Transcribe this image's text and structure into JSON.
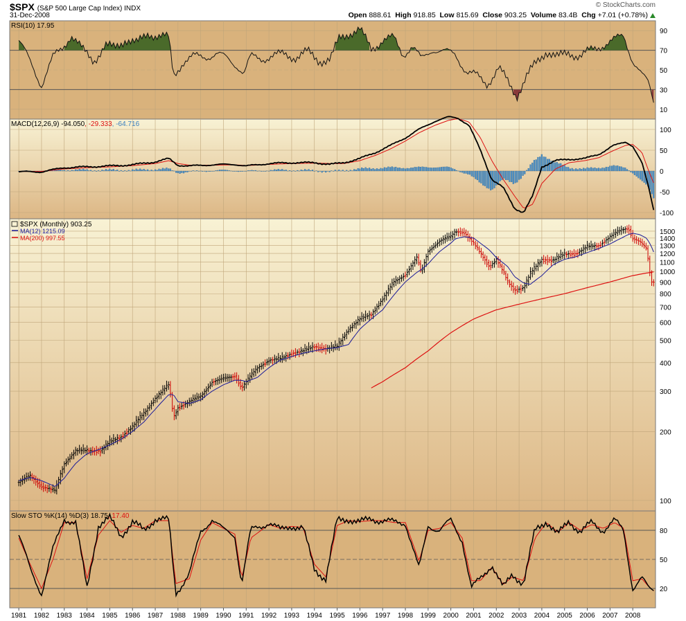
{
  "header": {
    "symbol": "$SPX",
    "description": "(S&P 500 Large Cap Index) INDX",
    "date": "31-Dec-2008",
    "open_label": "Open",
    "open": "888.61",
    "high_label": "High",
    "high": "918.85",
    "low_label": "Low",
    "low": "815.69",
    "close_label": "Close",
    "close": "903.25",
    "volume_label": "Volume",
    "volume": "83.4B",
    "chg_label": "Chg",
    "chg": "+7.01 (+0.78%)",
    "brand": "© StockCharts.com"
  },
  "colors": {
    "panel_bg": "#d9b27c",
    "main_bg_top": "#f7f0cf",
    "main_bg_bottom": "#dcb583",
    "price_up": "#000000",
    "price_down": "#cc0000",
    "ma12": "#1a1a99",
    "ma200": "#dd1111",
    "histogram": "#4a90c8",
    "rsi_fill_high": "#4a6a2a",
    "rsi_fill_low": "#8a3a3a"
  },
  "chart_data": [
    {
      "type": "line",
      "panel": "rsi",
      "label_text": "RSI(10) 17.95",
      "ylim": [
        0,
        100
      ],
      "yticks": [
        10,
        30,
        50,
        70,
        90
      ],
      "x": [
        1981.0,
        1981.5,
        1982.0,
        1982.5,
        1982.9,
        1983.3,
        1983.8,
        1984.3,
        1984.8,
        1985.2,
        1985.7,
        1986.2,
        1986.7,
        1987.2,
        1987.6,
        1987.8,
        1988.2,
        1988.7,
        1989.2,
        1989.7,
        1990.2,
        1990.6,
        1990.9,
        1991.2,
        1991.7,
        1992.2,
        1992.7,
        1993.2,
        1993.7,
        1994.2,
        1994.7,
        1995.1,
        1995.5,
        1996.0,
        1996.5,
        1997.0,
        1997.5,
        1997.9,
        1998.3,
        1998.7,
        1999.2,
        1999.7,
        2000.2,
        2000.7,
        2001.1,
        2001.6,
        2002.1,
        2002.6,
        2002.9,
        2003.3,
        2003.7,
        2004.2,
        2004.7,
        2005.2,
        2005.7,
        2006.2,
        2006.7,
        2007.2,
        2007.6,
        2008.0,
        2008.4,
        2008.7,
        2008.92
      ],
      "values": [
        80,
        58,
        35,
        62,
        72,
        86,
        70,
        60,
        74,
        72,
        82,
        76,
        88,
        84,
        82,
        44,
        58,
        63,
        64,
        66,
        61,
        55,
        46,
        63,
        62,
        64,
        66,
        63,
        68,
        60,
        60,
        82,
        88,
        90,
        72,
        80,
        82,
        66,
        74,
        60,
        72,
        68,
        66,
        48,
        44,
        36,
        52,
        34,
        24,
        42,
        55,
        70,
        62,
        68,
        64,
        70,
        76,
        80,
        85,
        60,
        44,
        36,
        18
      ]
    },
    {
      "type": "line",
      "panel": "macd",
      "label_macd": "MACD(12,26,9) -94.050",
      "label_signal": ", -29.333",
      "label_hist": ", -64.716",
      "ylim": [
        -115,
        125
      ],
      "yticks": [
        -100,
        -50,
        0,
        50,
        100
      ],
      "x": [
        1981.0,
        1982.0,
        1983.0,
        1984.0,
        1985.0,
        1986.0,
        1987.0,
        1987.6,
        1988.0,
        1988.5,
        1989.5,
        1990.5,
        1991.0,
        1992.0,
        1993.0,
        1994.0,
        1994.7,
        1995.3,
        1996.0,
        1996.7,
        1997.3,
        1998.0,
        1998.6,
        1999.3,
        1999.9,
        2000.3,
        2000.8,
        2001.3,
        2001.8,
        2002.3,
        2002.8,
        2003.2,
        2003.6,
        2004.0,
        2004.6,
        2005.2,
        2005.9,
        2006.5,
        2007.1,
        2007.7,
        2008.0,
        2008.4,
        2008.7,
        2008.92
      ],
      "series": [
        {
          "name": "MACD",
          "values": [
            -2,
            -2,
            8,
            10,
            12,
            15,
            22,
            30,
            14,
            12,
            15,
            16,
            12,
            18,
            20,
            20,
            16,
            20,
            30,
            45,
            60,
            80,
            100,
            120,
            130,
            128,
            110,
            50,
            -20,
            -40,
            -90,
            -100,
            -60,
            10,
            25,
            28,
            30,
            40,
            60,
            70,
            60,
            20,
            -40,
            -94
          ]
        },
        {
          "name": "Signal",
          "values": [
            -1,
            -1,
            5,
            8,
            10,
            13,
            18,
            25,
            18,
            14,
            14,
            15,
            13,
            16,
            18,
            19,
            18,
            18,
            25,
            38,
            52,
            72,
            92,
            110,
            122,
            126,
            118,
            80,
            25,
            -20,
            -60,
            -90,
            -80,
            -30,
            5,
            20,
            25,
            32,
            48,
            62,
            64,
            45,
            0,
            -29
          ]
        },
        {
          "name": "Histogram",
          "values": [
            -1,
            -1,
            3,
            2,
            2,
            2,
            4,
            5,
            -4,
            -2,
            1,
            1,
            -1,
            2,
            2,
            1,
            -2,
            2,
            5,
            7,
            8,
            8,
            8,
            10,
            8,
            2,
            -8,
            -30,
            -45,
            -20,
            -30,
            -10,
            20,
            40,
            20,
            8,
            5,
            8,
            12,
            8,
            -4,
            -25,
            -40,
            -65
          ]
        }
      ]
    },
    {
      "type": "line",
      "panel": "price",
      "label_symbol": "$SPX (Monthly) 903.25",
      "label_ma12": "MA(12) 1215.09",
      "label_ma200": "MA(200) 997.55",
      "scale": "log",
      "ylim": [
        90,
        1700
      ],
      "yticks": [
        100,
        200,
        300,
        400,
        500,
        600,
        700,
        800,
        900,
        1000,
        1100,
        1200,
        1300,
        1400,
        1500
      ],
      "x": [
        1981.0,
        1981.5,
        1982.0,
        1982.6,
        1983.0,
        1983.5,
        1984.0,
        1984.6,
        1985.0,
        1985.5,
        1986.0,
        1986.5,
        1987.0,
        1987.6,
        1987.8,
        1988.0,
        1988.5,
        1989.0,
        1989.5,
        1990.0,
        1990.5,
        1990.8,
        1991.0,
        1991.5,
        1992.0,
        1992.5,
        1993.0,
        1993.5,
        1994.0,
        1994.5,
        1995.0,
        1995.5,
        1996.0,
        1996.5,
        1997.0,
        1997.5,
        1998.0,
        1998.5,
        1998.7,
        1999.0,
        1999.5,
        2000.0,
        2000.2,
        2000.6,
        2001.0,
        2001.3,
        2001.7,
        2002.0,
        2002.5,
        2002.8,
        2003.2,
        2003.5,
        2004.0,
        2004.5,
        2005.0,
        2005.5,
        2006.0,
        2006.5,
        2007.0,
        2007.5,
        2007.8,
        2008.0,
        2008.3,
        2008.6,
        2008.8,
        2008.92
      ],
      "series": [
        {
          "name": "$SPX",
          "values": [
            120,
            128,
            115,
            110,
            145,
            165,
            165,
            165,
            180,
            190,
            210,
            240,
            280,
            320,
            230,
            255,
            270,
            285,
            330,
            340,
            350,
            310,
            330,
            380,
            410,
            415,
            440,
            450,
            470,
            460,
            470,
            560,
            620,
            650,
            760,
            900,
            970,
            1150,
            980,
            1230,
            1360,
            1420,
            1500,
            1480,
            1320,
            1200,
            1050,
            1130,
            900,
            830,
            850,
            980,
            1130,
            1120,
            1190,
            1200,
            1280,
            1300,
            1420,
            1520,
            1550,
            1400,
            1350,
            1250,
            900,
            903
          ]
        },
        {
          "name": "MA(12)",
          "values": [
            122,
            126,
            122,
            115,
            125,
            145,
            160,
            168,
            175,
            185,
            200,
            220,
            250,
            290,
            290,
            270,
            265,
            275,
            300,
            320,
            335,
            335,
            330,
            345,
            380,
            410,
            425,
            440,
            450,
            460,
            465,
            480,
            560,
            620,
            680,
            790,
            900,
            990,
            1020,
            1080,
            1220,
            1330,
            1390,
            1420,
            1400,
            1330,
            1240,
            1150,
            1050,
            950,
            890,
            880,
            960,
            1070,
            1130,
            1160,
            1210,
            1260,
            1320,
            1400,
            1450,
            1470,
            1450,
            1400,
            1300,
            1215
          ]
        },
        {
          "name": "MA(200)",
          "x": [
            1996.5,
            1997.0,
            1998.0,
            1999.0,
            2000.0,
            2001.0,
            2002.0,
            2003.0,
            2004.0,
            2005.0,
            2006.0,
            2007.0,
            2008.0,
            2008.92
          ],
          "values": [
            310,
            330,
            380,
            450,
            540,
            620,
            680,
            720,
            760,
            800,
            850,
            900,
            960,
            997.55
          ]
        }
      ]
    },
    {
      "type": "line",
      "panel": "stochastic",
      "label_k": "Slow STO %K(14) %D(3) 18.75",
      "label_d": ", 17.40",
      "ylim": [
        0,
        100
      ],
      "yticks": [
        20,
        50,
        80
      ],
      "x": [
        1981.0,
        1981.5,
        1982.0,
        1982.5,
        1983.0,
        1983.5,
        1984.0,
        1984.5,
        1985.0,
        1985.5,
        1986.0,
        1986.5,
        1987.0,
        1987.6,
        1987.9,
        1988.5,
        1989.0,
        1989.5,
        1990.0,
        1990.5,
        1990.8,
        1991.2,
        1992.0,
        1992.5,
        1993.0,
        1993.5,
        1994.0,
        1994.5,
        1995.0,
        1995.5,
        1996.0,
        1996.5,
        1997.0,
        1997.5,
        1998.0,
        1998.6,
        1999.0,
        1999.5,
        2000.0,
        2000.5,
        2000.9,
        2001.3,
        2001.8,
        2002.3,
        2002.7,
        2003.2,
        2003.7,
        2004.2,
        2004.7,
        2005.2,
        2005.7,
        2006.2,
        2006.7,
        2007.2,
        2007.6,
        2008.0,
        2008.4,
        2008.7,
        2008.92
      ],
      "series": [
        {
          "name": "%K",
          "values": [
            75,
            40,
            15,
            60,
            92,
            88,
            20,
            85,
            92,
            75,
            88,
            80,
            92,
            90,
            15,
            35,
            78,
            92,
            80,
            75,
            25,
            80,
            88,
            80,
            85,
            82,
            40,
            30,
            90,
            92,
            88,
            92,
            90,
            88,
            88,
            40,
            85,
            80,
            90,
            70,
            20,
            30,
            45,
            20,
            35,
            25,
            80,
            90,
            75,
            90,
            78,
            88,
            80,
            90,
            80,
            20,
            30,
            20,
            19
          ]
        },
        {
          "name": "%D",
          "values": [
            72,
            45,
            20,
            50,
            88,
            88,
            30,
            75,
            90,
            78,
            85,
            82,
            90,
            90,
            25,
            30,
            70,
            88,
            82,
            76,
            30,
            72,
            86,
            82,
            84,
            83,
            45,
            32,
            85,
            90,
            89,
            90,
            90,
            88,
            88,
            48,
            80,
            82,
            88,
            72,
            28,
            28,
            42,
            24,
            32,
            28,
            72,
            88,
            78,
            88,
            80,
            86,
            82,
            88,
            82,
            28,
            30,
            22,
            17.4
          ]
        }
      ]
    }
  ],
  "x_axis": {
    "tick_labels": [
      "1981",
      "1982",
      "1983",
      "1984",
      "1985",
      "1986",
      "1987",
      "1988",
      "1989",
      "1990",
      "1991",
      "1992",
      "1993",
      "1994",
      "1995",
      "1996",
      "1997",
      "1998",
      "1999",
      "2000",
      "2001",
      "2002",
      "2003",
      "2004",
      "2005",
      "2006",
      "2007",
      "2008"
    ],
    "tick_years": [
      1981,
      1982,
      1983,
      1984,
      1985,
      1986,
      1987,
      1988,
      1989,
      1990,
      1991,
      1992,
      1993,
      1994,
      1995,
      1996,
      1997,
      1998,
      1999,
      2000,
      2001,
      2002,
      2003,
      2004,
      2005,
      2006,
      2007,
      2008
    ]
  }
}
